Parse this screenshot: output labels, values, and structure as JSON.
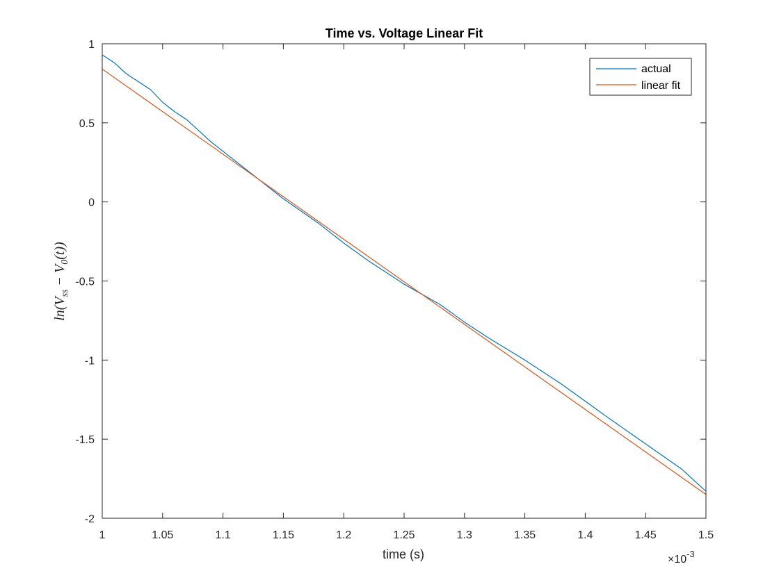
{
  "chart_data": {
    "type": "line",
    "title": "Time vs. Voltage Linear Fit",
    "xlabel": "time (s)",
    "ylabel": "ln(V_ss − V_0(t))",
    "ylabel_parts": {
      "prefix": "ln(V",
      "sub1": "ss",
      "middle": " − V",
      "sub2": "0",
      "suffix": "(t))"
    },
    "xlim": [
      0.001,
      0.0015
    ],
    "ylim": [
      -2,
      1
    ],
    "x_exponent_label": {
      "base": "×10",
      "exponent": "-3"
    },
    "x_ticks": [
      {
        "value": 0.001,
        "label": "1"
      },
      {
        "value": 0.00105,
        "label": "1.05"
      },
      {
        "value": 0.0011,
        "label": "1.1"
      },
      {
        "value": 0.00115,
        "label": "1.15"
      },
      {
        "value": 0.0012,
        "label": "1.2"
      },
      {
        "value": 0.00125,
        "label": "1.25"
      },
      {
        "value": 0.0013,
        "label": "1.3"
      },
      {
        "value": 0.00135,
        "label": "1.35"
      },
      {
        "value": 0.0014,
        "label": "1.4"
      },
      {
        "value": 0.00145,
        "label": "1.45"
      },
      {
        "value": 0.0015,
        "label": "1.5"
      }
    ],
    "y_ticks": [
      {
        "value": 1,
        "label": "1"
      },
      {
        "value": 0.5,
        "label": "0.5"
      },
      {
        "value": 0,
        "label": "0"
      },
      {
        "value": -0.5,
        "label": "-0.5"
      },
      {
        "value": -1,
        "label": "-1"
      },
      {
        "value": -1.5,
        "label": "-1.5"
      },
      {
        "value": -2,
        "label": "-2"
      }
    ],
    "grid": false,
    "legend_position": "top-right",
    "series": [
      {
        "name": "actual",
        "color": "#0072BD",
        "points": [
          [
            0.001,
            0.93
          ],
          [
            0.00101,
            0.88
          ],
          [
            0.00102,
            0.81
          ],
          [
            0.00103,
            0.76
          ],
          [
            0.00104,
            0.71
          ],
          [
            0.00105,
            0.63
          ],
          [
            0.00106,
            0.57
          ],
          [
            0.00107,
            0.52
          ],
          [
            0.00108,
            0.45
          ],
          [
            0.00109,
            0.38
          ],
          [
            0.0011,
            0.32
          ],
          [
            0.00112,
            0.2
          ],
          [
            0.00115,
            0.02
          ],
          [
            0.00118,
            -0.14
          ],
          [
            0.0012,
            -0.26
          ],
          [
            0.00122,
            -0.37
          ],
          [
            0.00125,
            -0.52
          ],
          [
            0.00128,
            -0.65
          ],
          [
            0.0013,
            -0.76
          ],
          [
            0.00132,
            -0.86
          ],
          [
            0.00135,
            -1.0
          ],
          [
            0.00138,
            -1.15
          ],
          [
            0.0014,
            -1.26
          ],
          [
            0.00142,
            -1.37
          ],
          [
            0.00145,
            -1.53
          ],
          [
            0.00148,
            -1.69
          ],
          [
            0.0015,
            -1.83
          ]
        ]
      },
      {
        "name": "linear fit",
        "color": "#D95319",
        "points": [
          [
            0.001,
            0.84
          ],
          [
            0.0015,
            -1.85
          ]
        ]
      }
    ]
  }
}
